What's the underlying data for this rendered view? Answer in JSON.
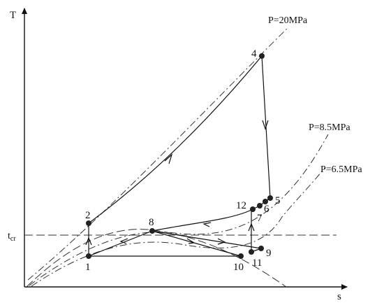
{
  "axes": {
    "y_label": "T",
    "x_label": "s",
    "tcr_label_main": "t",
    "tcr_label_sub": "cr"
  },
  "isobars": {
    "p20": "P=20MPa",
    "p85": "P=8.5MPa",
    "p65": "P=6.5MPa"
  },
  "states": [
    "1",
    "2",
    "4",
    "5",
    "6",
    "7",
    "8",
    "9",
    "10",
    "11",
    "12"
  ]
}
